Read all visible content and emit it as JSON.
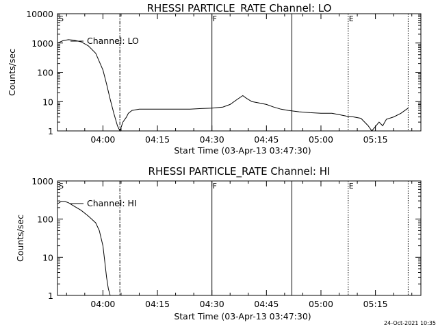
{
  "timestamp": "24-Oct-2021 10:35",
  "chart_data": [
    {
      "type": "line",
      "title": "RHESSI PARTICLE_RATE Channel: LO",
      "xlabel": "Start Time (03-Apr-13 03:47:30)",
      "ylabel": "Counts/sec",
      "yscale": "log",
      "ylim": [
        1,
        10000
      ],
      "xlim_minutes_after_start": [
        0,
        100
      ],
      "x_ticks": [
        "04:00",
        "04:15",
        "04:30",
        "04:45",
        "05:00",
        "05:15"
      ],
      "y_ticks": [
        "1",
        "10",
        "100",
        "1000",
        "10000"
      ],
      "legend": "Channel: LO",
      "flags": [
        {
          "label": "S",
          "time": "03:47:30"
        },
        {
          "label": "F",
          "time": "04:30:00"
        },
        {
          "label": "E",
          "time": "05:07:30"
        }
      ],
      "markers": [
        {
          "time": "04:04:40",
          "style": "dash-dot"
        },
        {
          "time": "04:30:00",
          "style": "solid"
        },
        {
          "time": "04:52:00",
          "style": "solid"
        },
        {
          "time": "05:07:30",
          "style": "dotted"
        },
        {
          "time": "05:24:00",
          "style": "dotted"
        }
      ],
      "series": [
        {
          "x": [
            "03:47:30",
            "03:49:00",
            "03:50:30",
            "03:52:00",
            "03:54:00",
            "03:56:00",
            "03:58:00",
            "04:00:00",
            "04:01:00",
            "04:02:00",
            "04:03:00",
            "04:04:00",
            "04:04:40",
            "04:05:30",
            "04:06:30",
            "04:07:00",
            "04:08:00",
            "04:10:00",
            "04:12:00",
            "04:15:00",
            "04:18:00",
            "04:21:00",
            "04:24:00",
            "04:27:00",
            "04:30:00",
            "04:33:00",
            "04:35:00",
            "04:37:00",
            "04:38:30",
            "04:39:30",
            "04:41:00",
            "04:43:00",
            "04:45:00",
            "04:47:00",
            "04:49:00",
            "04:51:00",
            "04:54:00",
            "04:57:00",
            "05:00:00",
            "05:03:00",
            "05:05:00",
            "05:07:00",
            "05:09:00",
            "05:11:00",
            "05:13:00",
            "05:14:00",
            "05:16:00",
            "05:17:00",
            "05:18:00",
            "05:20:00",
            "05:22:00",
            "05:24:00"
          ],
          "y": [
            1000,
            1200,
            1300,
            1250,
            1100,
            800,
            450,
            120,
            40,
            12,
            4,
            1.5,
            1,
            2,
            3,
            4,
            5,
            5.5,
            5.5,
            5.5,
            5.5,
            5.5,
            5.5,
            5.8,
            6,
            6.5,
            8,
            12,
            16,
            13,
            10,
            9,
            8,
            6.5,
            5.5,
            5,
            4.5,
            4.2,
            4,
            4,
            3.6,
            3.2,
            3,
            2.7,
            1.5,
            1,
            2,
            1.5,
            2.5,
            3,
            4,
            6
          ]
        }
      ]
    },
    {
      "type": "line",
      "title": "RHESSI PARTICLE_RATE Channel: HI",
      "xlabel": "Start Time (03-Apr-13 03:47:30)",
      "ylabel": "Counts/sec",
      "yscale": "log",
      "ylim": [
        1,
        1000
      ],
      "xlim_minutes_after_start": [
        0,
        100
      ],
      "x_ticks": [
        "04:00",
        "04:15",
        "04:30",
        "04:45",
        "05:00",
        "05:15"
      ],
      "y_ticks": [
        "1",
        "10",
        "100",
        "1000"
      ],
      "legend": "Channel: HI",
      "flags": [
        {
          "label": "S",
          "time": "03:47:30"
        },
        {
          "label": "F",
          "time": "04:30:00"
        },
        {
          "label": "E",
          "time": "05:07:30"
        }
      ],
      "markers": [
        {
          "time": "04:04:40",
          "style": "dash-dot"
        },
        {
          "time": "04:30:00",
          "style": "solid"
        },
        {
          "time": "04:52:00",
          "style": "solid"
        },
        {
          "time": "05:07:30",
          "style": "dotted"
        },
        {
          "time": "05:24:00",
          "style": "dotted"
        }
      ],
      "series": [
        {
          "x": [
            "03:47:30",
            "03:48:30",
            "03:49:30",
            "03:50:30",
            "03:52:00",
            "03:54:00",
            "03:56:00",
            "03:58:00",
            "03:59:00",
            "04:00:00",
            "04:00:30",
            "04:01:00",
            "04:01:30",
            "04:02:00"
          ],
          "y": [
            250,
            290,
            290,
            270,
            220,
            170,
            120,
            80,
            50,
            20,
            8,
            3,
            1.5,
            1
          ]
        }
      ]
    }
  ]
}
